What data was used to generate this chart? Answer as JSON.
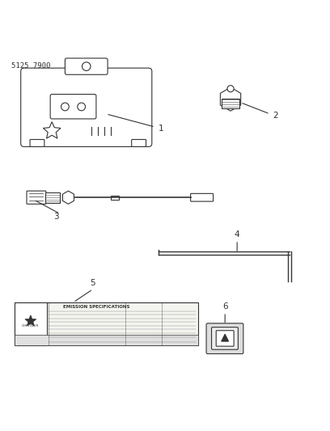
{
  "title": "5125 7900",
  "bg_color": "#ffffff",
  "line_color": "#333333",
  "fig_width": 4.08,
  "fig_height": 5.33,
  "dpi": 100
}
